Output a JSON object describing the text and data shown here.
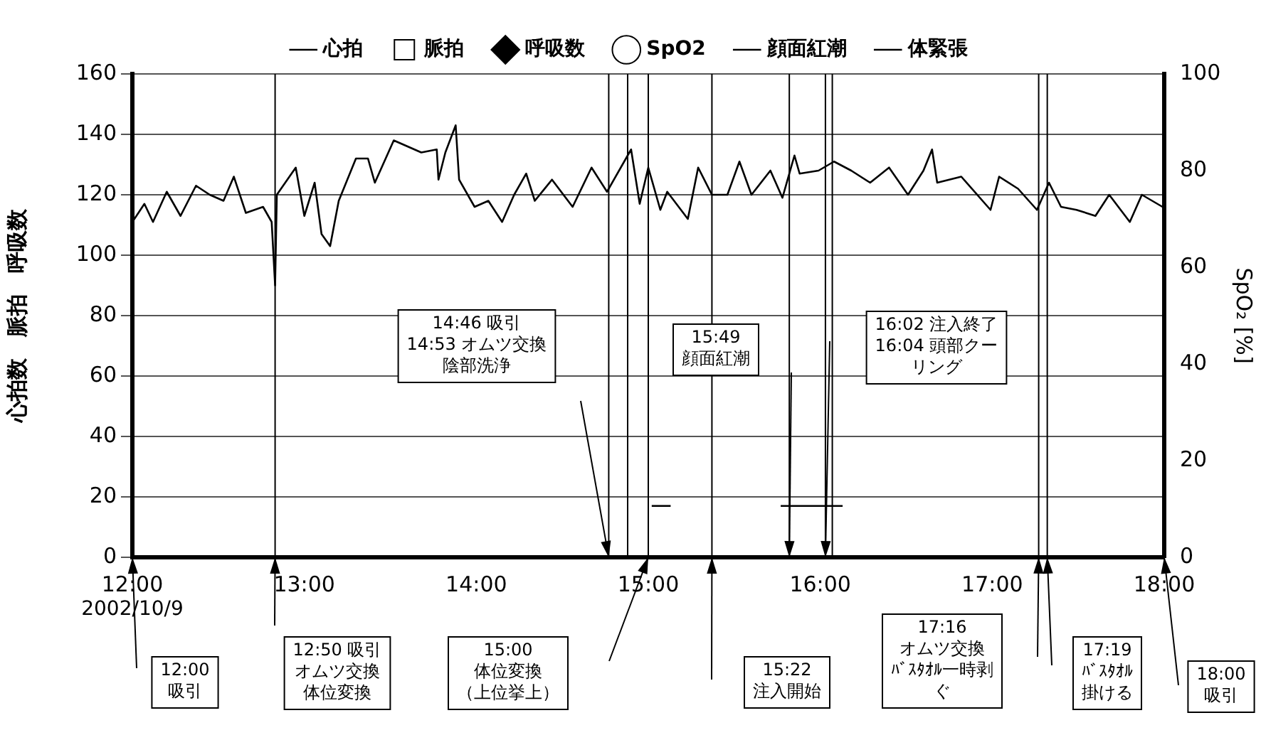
{
  "chart_data": {
    "type": "line",
    "xlim": [
      12,
      18
    ],
    "xticks": [
      {
        "value": 12,
        "label": "12:00"
      },
      {
        "value": 13,
        "label": "13:00"
      },
      {
        "value": 14,
        "label": "14:00"
      },
      {
        "value": 15,
        "label": "15:00"
      },
      {
        "value": 16,
        "label": "16:00"
      },
      {
        "value": 17,
        "label": "17:00"
      },
      {
        "value": 18,
        "label": "18:00"
      }
    ],
    "ylim": [
      0,
      160
    ],
    "yticks": [
      0,
      20,
      40,
      60,
      80,
      100,
      120,
      140,
      160
    ],
    "y2lim": [
      0,
      100
    ],
    "y2ticks": [
      0,
      20,
      40,
      60,
      80,
      100
    ],
    "ylabel": "心拍数　脈拍　呼吸数",
    "y2label": "SpO₂ [%]",
    "grid": "y",
    "legend": "top",
    "series": [
      {
        "name": "心拍",
        "color": "#000000",
        "marker": "none",
        "x": [
          12.0,
          12.07,
          12.12,
          12.2,
          12.28,
          12.37,
          12.45,
          12.53,
          12.59,
          12.66,
          12.76,
          12.81,
          12.83,
          12.84,
          12.95,
          13.0,
          13.06,
          13.1,
          13.15,
          13.2,
          13.3,
          13.37,
          13.41,
          13.52,
          13.6,
          13.68,
          13.77,
          13.78,
          13.82,
          13.88,
          13.9,
          13.99,
          14.07,
          14.15,
          14.22,
          14.29,
          14.34,
          14.44,
          14.56,
          14.67,
          14.76,
          14.9,
          14.95,
          15.0,
          15.07,
          15.11,
          15.23,
          15.29,
          15.37,
          15.46,
          15.53,
          15.6,
          15.71,
          15.78,
          15.85,
          15.88,
          15.99,
          16.08,
          16.18,
          16.29,
          16.4,
          16.51,
          16.6,
          16.65,
          16.68,
          16.82,
          16.99,
          17.04,
          17.15,
          17.26,
          17.33,
          17.4,
          17.49,
          17.6,
          17.68,
          17.8,
          17.87,
          17.99
        ],
        "values": [
          111,
          117,
          111,
          121,
          113,
          123,
          120,
          118,
          126,
          114,
          116,
          111,
          90,
          120,
          129,
          113,
          124,
          107,
          103,
          118,
          132,
          132,
          124,
          138,
          136,
          134,
          135,
          125,
          134,
          143,
          125,
          116,
          118,
          111,
          120,
          127,
          118,
          125,
          116,
          129,
          121,
          135,
          117,
          129,
          115,
          121,
          112,
          129,
          120,
          120,
          131,
          120,
          128,
          119,
          133,
          127,
          128,
          131,
          128,
          124,
          129,
          120,
          128,
          135,
          124,
          126,
          115,
          126,
          122,
          115,
          124,
          116,
          115,
          113,
          120,
          111,
          120,
          116
        ]
      },
      {
        "name": "脈拍",
        "type": "scatter",
        "color": "#000000",
        "marker": "square"
      },
      {
        "name": "呼吸数",
        "type": "scatter",
        "color": "#000000",
        "marker": "diamond"
      },
      {
        "name": "SpO2",
        "type": "scatter",
        "color": "#000000",
        "marker": "circle"
      },
      {
        "name": "顔面紅潮",
        "type": "line",
        "color": "#000000",
        "marker": "none",
        "x": [
          15.77,
          16.13
        ],
        "values": [
          17,
          17
        ]
      },
      {
        "name": "体緊張",
        "type": "line",
        "color": "#000000",
        "marker": "none",
        "x": [
          15.02,
          15.13
        ],
        "values": [
          17,
          17
        ]
      }
    ],
    "ref_lines": [
      {
        "axis": "x",
        "value": 12.83,
        "color": "#000000"
      },
      {
        "axis": "x",
        "value": 14.77,
        "color": "#000000"
      },
      {
        "axis": "x",
        "value": 14.88,
        "color": "#000000"
      },
      {
        "axis": "x",
        "value": 15.0,
        "color": "#000000"
      },
      {
        "axis": "x",
        "value": 15.37,
        "color": "#000000"
      },
      {
        "axis": "x",
        "value": 15.82,
        "color": "#000000"
      },
      {
        "axis": "x",
        "value": 16.03,
        "color": "#000000"
      },
      {
        "axis": "x",
        "value": 16.07,
        "color": "#000000"
      },
      {
        "axis": "x",
        "value": 17.27,
        "color": "#000000"
      },
      {
        "axis": "x",
        "value": 17.32,
        "color": "#000000"
      }
    ],
    "annotations": [
      "2002/10/9",
      "12:00吸引",
      "12:50 吸引オムツ交換体位変換",
      "14:46 吸引14:53 オムツ交換陰部洗浄",
      "15:00体位変換（上位挙上）",
      "15:22注入開始",
      "15:49顔面紅潮",
      "16:02 注入終了16:04 頭部クーリング",
      "17:16オムツ交換ﾊﾞｽﾀｵﾙ一時剥ぐ",
      "17:19ﾊﾞｽﾀｵﾙ掛ける",
      "18:00吸引"
    ]
  }
}
